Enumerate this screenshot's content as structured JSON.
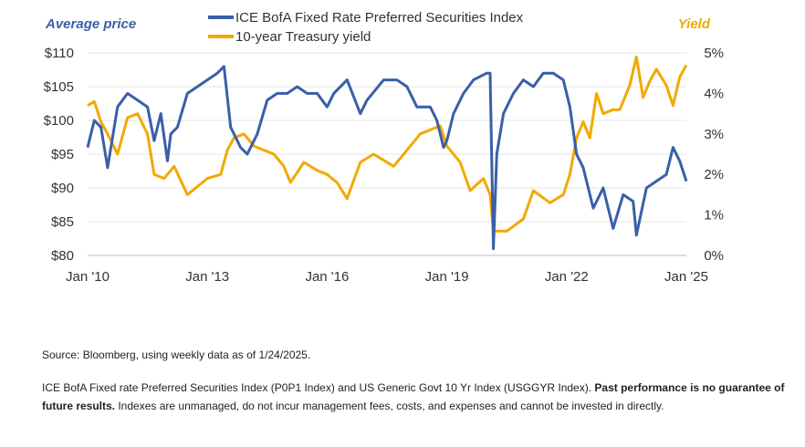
{
  "legend": {
    "items": [
      {
        "label": "ICE BofA Fixed Rate Preferred Securities Index",
        "color": "#3a5fa8"
      },
      {
        "label": "10-year Treasury yield",
        "color": "#f2a900"
      }
    ]
  },
  "left_axis_title": "Average price",
  "right_axis_title": "Yield",
  "chart_data": {
    "type": "line",
    "title": "",
    "xlabel": "",
    "x_range": [
      "2010-01",
      "2025-01"
    ],
    "x_ticks": [
      {
        "date": "2010-01",
        "label": "Jan '10"
      },
      {
        "date": "2013-01",
        "label": "Jan '13"
      },
      {
        "date": "2016-01",
        "label": "Jan '16"
      },
      {
        "date": "2019-01",
        "label": "Jan '19"
      },
      {
        "date": "2022-01",
        "label": "Jan '22"
      },
      {
        "date": "2025-01",
        "label": "Jan '25"
      }
    ],
    "y_left": {
      "label": "Average price",
      "ylim": [
        80,
        110
      ],
      "ticks": [
        "$80",
        "$85",
        "$90",
        "$95",
        "$100",
        "$105",
        "$110"
      ]
    },
    "y_right": {
      "label": "Yield",
      "ylim": [
        0,
        5
      ],
      "ticks": [
        "0%",
        "1%",
        "2%",
        "3%",
        "4%",
        "5%"
      ]
    },
    "grid": "horizontal",
    "legend_position": "top-center",
    "series": [
      {
        "name": "ICE BofA Fixed Rate Preferred Securities Index",
        "axis": "left",
        "color": "#3a5fa8",
        "points": [
          [
            "2010-01",
            96
          ],
          [
            "2010-03",
            100
          ],
          [
            "2010-05",
            99
          ],
          [
            "2010-07",
            93
          ],
          [
            "2010-10",
            102
          ],
          [
            "2011-01",
            104
          ],
          [
            "2011-04",
            103
          ],
          [
            "2011-07",
            102
          ],
          [
            "2011-09",
            97
          ],
          [
            "2011-11",
            101
          ],
          [
            "2012-01",
            94
          ],
          [
            "2012-02",
            98
          ],
          [
            "2012-04",
            99
          ],
          [
            "2012-07",
            104
          ],
          [
            "2012-10",
            105
          ],
          [
            "2013-01",
            106
          ],
          [
            "2013-04",
            107
          ],
          [
            "2013-06",
            108
          ],
          [
            "2013-08",
            99
          ],
          [
            "2013-11",
            96
          ],
          [
            "2014-01",
            95
          ],
          [
            "2014-04",
            98
          ],
          [
            "2014-07",
            103
          ],
          [
            "2014-10",
            104
          ],
          [
            "2015-01",
            104
          ],
          [
            "2015-04",
            105
          ],
          [
            "2015-07",
            104
          ],
          [
            "2015-10",
            104
          ],
          [
            "2016-01",
            102
          ],
          [
            "2016-03",
            104
          ],
          [
            "2016-07",
            106
          ],
          [
            "2016-11",
            101
          ],
          [
            "2017-01",
            103
          ],
          [
            "2017-06",
            106
          ],
          [
            "2017-10",
            106
          ],
          [
            "2018-01",
            105
          ],
          [
            "2018-04",
            102
          ],
          [
            "2018-08",
            102
          ],
          [
            "2018-10",
            100
          ],
          [
            "2018-12",
            96
          ],
          [
            "2019-01",
            97
          ],
          [
            "2019-03",
            101
          ],
          [
            "2019-06",
            104
          ],
          [
            "2019-09",
            106
          ],
          [
            "2020-01",
            107
          ],
          [
            "2020-02",
            107
          ],
          [
            "2020-03",
            81
          ],
          [
            "2020-04",
            95
          ],
          [
            "2020-06",
            101
          ],
          [
            "2020-09",
            104
          ],
          [
            "2020-12",
            106
          ],
          [
            "2021-03",
            105
          ],
          [
            "2021-06",
            107
          ],
          [
            "2021-09",
            107
          ],
          [
            "2021-12",
            106
          ],
          [
            "2022-02",
            102
          ],
          [
            "2022-04",
            95
          ],
          [
            "2022-06",
            93
          ],
          [
            "2022-09",
            87
          ],
          [
            "2022-12",
            90
          ],
          [
            "2023-03",
            84
          ],
          [
            "2023-06",
            89
          ],
          [
            "2023-09",
            88
          ],
          [
            "2023-10",
            83
          ],
          [
            "2024-01",
            90
          ],
          [
            "2024-04",
            91
          ],
          [
            "2024-07",
            92
          ],
          [
            "2024-09",
            96
          ],
          [
            "2024-11",
            94
          ],
          [
            "2025-01",
            91
          ]
        ]
      },
      {
        "name": "10-year Treasury yield",
        "axis": "right",
        "color": "#f2a900",
        "points": [
          [
            "2010-01",
            3.7
          ],
          [
            "2010-03",
            3.8
          ],
          [
            "2010-05",
            3.3
          ],
          [
            "2010-07",
            3.0
          ],
          [
            "2010-10",
            2.5
          ],
          [
            "2011-01",
            3.4
          ],
          [
            "2011-04",
            3.5
          ],
          [
            "2011-07",
            3.0
          ],
          [
            "2011-09",
            2.0
          ],
          [
            "2011-12",
            1.9
          ],
          [
            "2012-03",
            2.2
          ],
          [
            "2012-07",
            1.5
          ],
          [
            "2012-10",
            1.7
          ],
          [
            "2013-01",
            1.9
          ],
          [
            "2013-05",
            2.0
          ],
          [
            "2013-07",
            2.6
          ],
          [
            "2013-09",
            2.9
          ],
          [
            "2013-12",
            3.0
          ],
          [
            "2014-03",
            2.7
          ],
          [
            "2014-06",
            2.6
          ],
          [
            "2014-09",
            2.5
          ],
          [
            "2014-12",
            2.2
          ],
          [
            "2015-02",
            1.8
          ],
          [
            "2015-06",
            2.3
          ],
          [
            "2015-10",
            2.1
          ],
          [
            "2016-01",
            2.0
          ],
          [
            "2016-04",
            1.8
          ],
          [
            "2016-07",
            1.4
          ],
          [
            "2016-11",
            2.3
          ],
          [
            "2017-03",
            2.5
          ],
          [
            "2017-09",
            2.2
          ],
          [
            "2018-01",
            2.6
          ],
          [
            "2018-05",
            3.0
          ],
          [
            "2018-11",
            3.2
          ],
          [
            "2019-01",
            2.7
          ],
          [
            "2019-05",
            2.3
          ],
          [
            "2019-08",
            1.6
          ],
          [
            "2019-12",
            1.9
          ],
          [
            "2020-02",
            1.5
          ],
          [
            "2020-03",
            0.6
          ],
          [
            "2020-07",
            0.6
          ],
          [
            "2020-12",
            0.9
          ],
          [
            "2021-03",
            1.6
          ],
          [
            "2021-08",
            1.3
          ],
          [
            "2021-12",
            1.5
          ],
          [
            "2022-02",
            2.0
          ],
          [
            "2022-04",
            2.9
          ],
          [
            "2022-06",
            3.3
          ],
          [
            "2022-08",
            2.9
          ],
          [
            "2022-10",
            4.0
          ],
          [
            "2022-12",
            3.5
          ],
          [
            "2023-03",
            3.6
          ],
          [
            "2023-05",
            3.6
          ],
          [
            "2023-08",
            4.2
          ],
          [
            "2023-10",
            4.9
          ],
          [
            "2023-12",
            3.9
          ],
          [
            "2024-02",
            4.3
          ],
          [
            "2024-04",
            4.6
          ],
          [
            "2024-07",
            4.2
          ],
          [
            "2024-09",
            3.7
          ],
          [
            "2024-11",
            4.4
          ],
          [
            "2025-01",
            4.7
          ]
        ]
      }
    ]
  },
  "source": "Source: Bloomberg, using weekly data as of 1/24/2025.",
  "footnote": {
    "part1": "ICE BofA Fixed rate Preferred Securities Index (P0P1 Index) and US Generic Govt 10 Yr Index (USGGYR Index). ",
    "bold": "Past performance is no guarantee of future results.",
    "part2": " Indexes are unmanaged, do not incur management fees, costs, and expenses and cannot be invested in directly."
  }
}
